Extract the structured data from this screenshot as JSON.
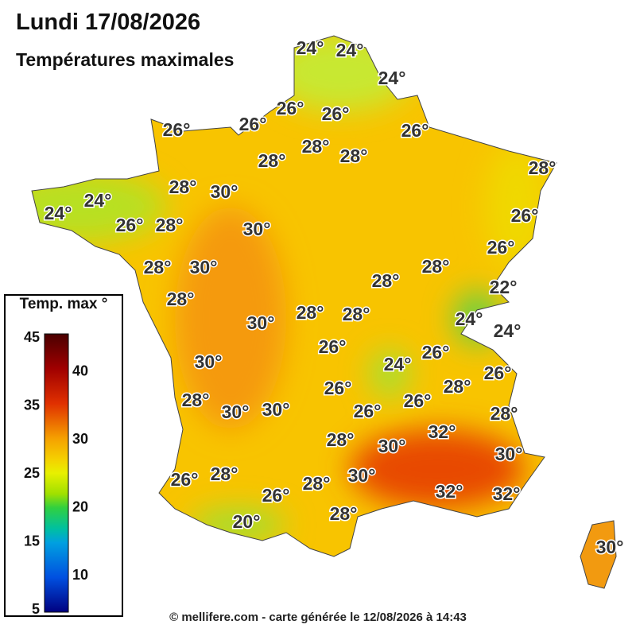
{
  "header": {
    "title": "Lundi 17/08/2026",
    "subtitle": "Températures maximales"
  },
  "legend": {
    "title": "Temp. max °",
    "left_ticks": [
      45,
      35,
      25,
      15,
      5
    ],
    "right_ticks": [
      40,
      30,
      20,
      10
    ]
  },
  "map": {
    "labels": [
      "24°",
      "24°",
      "24°",
      "26°",
      "26°",
      "26°",
      "26°",
      "26°",
      "28°",
      "28°",
      "28°",
      "28°",
      "28°",
      "30°",
      "24°",
      "24°",
      "26°",
      "26°",
      "28°",
      "30°",
      "26°",
      "28°",
      "30°",
      "28°",
      "28°",
      "22°",
      "28°",
      "28°",
      "28°",
      "30°",
      "24°",
      "24°",
      "26°",
      "26°",
      "24°",
      "30°",
      "26°",
      "26°",
      "28°",
      "28°",
      "26°",
      "26°",
      "30°",
      "30°",
      "28°",
      "32°",
      "28°",
      "30°",
      "30°",
      "30°",
      "28°",
      "26°",
      "28°",
      "26°",
      "32°",
      "32°",
      "28°",
      "20°",
      "30°"
    ]
  },
  "footer": "© mellifere.com - carte générée le 12/08/2026 à 14:43"
}
